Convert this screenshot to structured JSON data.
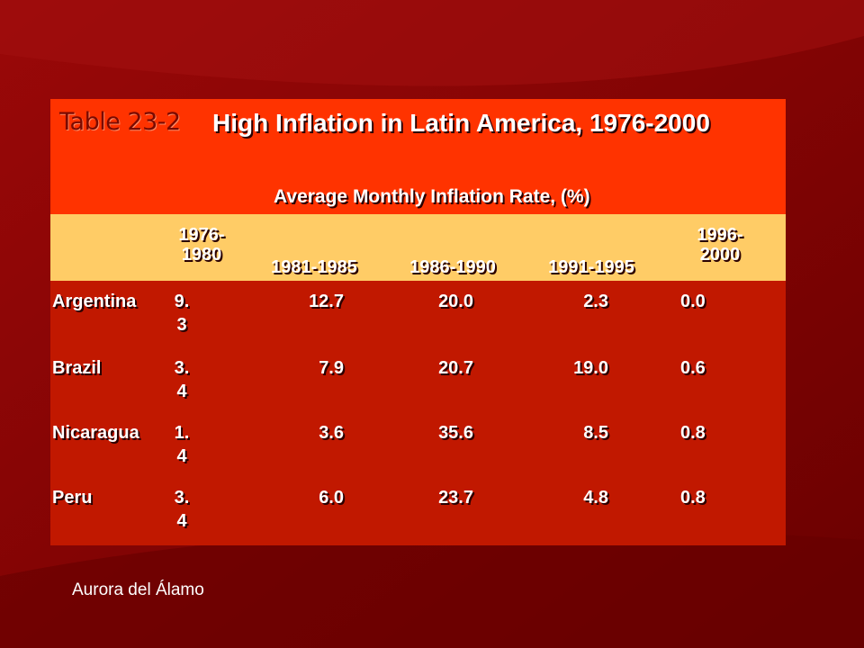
{
  "table_label": "Table 23-2",
  "table_title": "High Inflation in Latin America, 1976-2000",
  "subheader": "Average Monthly Inflation Rate, (%)",
  "years": [
    "1976-1980",
    "1981-1985",
    "1986-1990",
    "1991-1995",
    "1996-2000"
  ],
  "rows": [
    {
      "country": "Argentina",
      "values": [
        "9.3",
        "12.7",
        "20.0",
        "2.3",
        "0.0"
      ]
    },
    {
      "country": "Brazil",
      "values": [
        "3.4",
        "7.9",
        "20.7",
        "19.0",
        "0.6"
      ]
    },
    {
      "country": "Nicaragua",
      "values": [
        "1.4",
        "3.6",
        "35.6",
        "8.5",
        "0.8"
      ]
    },
    {
      "country": "Peru",
      "values": [
        "3.4",
        "6.0",
        "23.7",
        "4.8",
        "0.8"
      ]
    }
  ],
  "credit": "Aurora del Álamo",
  "colors": {
    "background": "#7d0000",
    "header": "#ff3300",
    "year_band": "#ffcc66",
    "body": "#c11800"
  }
}
